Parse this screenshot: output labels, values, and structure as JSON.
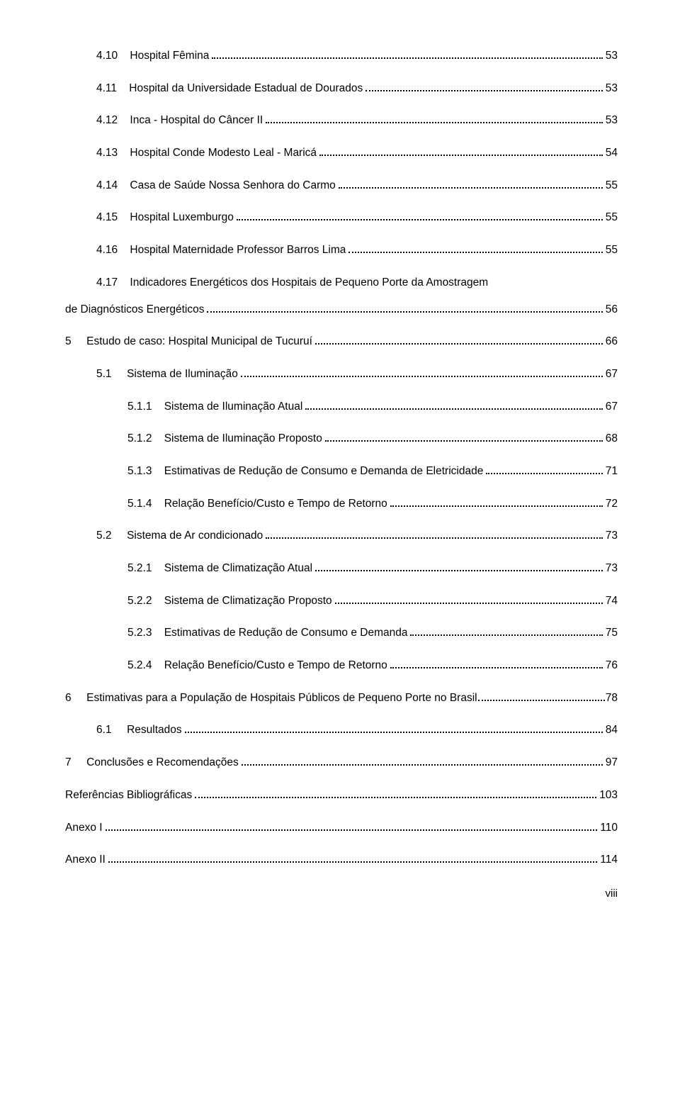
{
  "entries": [
    {
      "indent": 1,
      "num": "4.10",
      "gap": "    ",
      "text": "Hospital Fêmina",
      "page": "53"
    },
    {
      "indent": 1,
      "num": "4.11",
      "gap": "    ",
      "text": "Hospital da Universidade Estadual de Dourados",
      "page": "53"
    },
    {
      "indent": 1,
      "num": "4.12",
      "gap": "    ",
      "text": "Inca - Hospital do Câncer II",
      "page": "53"
    },
    {
      "indent": 1,
      "num": "4.13",
      "gap": "    ",
      "text": "Hospital Conde Modesto Leal - Maricá",
      "page": "54"
    },
    {
      "indent": 1,
      "num": "4.14",
      "gap": "    ",
      "text": "Casa de Saúde Nossa Senhora do Carmo",
      "page": "55"
    },
    {
      "indent": 1,
      "num": "4.15",
      "gap": "    ",
      "text": "Hospital Luxemburgo",
      "page": "55"
    },
    {
      "indent": 1,
      "num": "4.16",
      "gap": "    ",
      "text": "Hospital Maternidade Professor Barros Lima",
      "page": "55"
    },
    {
      "indent": 1,
      "num": "4.17",
      "gap": "    ",
      "text": "Indicadores Energéticos dos Hospitais de Pequeno Porte da Amostragem",
      "wrapBefore": "de Diagnósticos Energéticos",
      "page": "56"
    },
    {
      "indent": 0,
      "num": "5",
      "gap": "     ",
      "text": "Estudo de caso: Hospital Municipal de Tucuruí",
      "page": "66"
    },
    {
      "indent": 1,
      "num": "5.1",
      "gap": "     ",
      "text": "Sistema de Iluminação",
      "page": "67"
    },
    {
      "indent": 2,
      "num": "5.1.1",
      "gap": "    ",
      "text": "Sistema de Iluminação Atual",
      "page": "67"
    },
    {
      "indent": 2,
      "num": "5.1.2",
      "gap": "    ",
      "text": "Sistema de Iluminação Proposto",
      "page": "68"
    },
    {
      "indent": 2,
      "num": "5.1.3",
      "gap": "    ",
      "text": "Estimativas de Redução de Consumo e Demanda de Eletricidade",
      "page": "71"
    },
    {
      "indent": 2,
      "num": "5.1.4",
      "gap": "    ",
      "text": "Relação Benefício/Custo e Tempo de Retorno",
      "page": "72"
    },
    {
      "indent": 1,
      "num": "5.2",
      "gap": "     ",
      "text": "Sistema de Ar condicionado",
      "page": "73"
    },
    {
      "indent": 2,
      "num": "5.2.1",
      "gap": "    ",
      "text": "Sistema de Climatização Atual",
      "page": "73"
    },
    {
      "indent": 2,
      "num": "5.2.2",
      "gap": "    ",
      "text": "Sistema de Climatização Proposto",
      "page": "74"
    },
    {
      "indent": 2,
      "num": "5.2.3",
      "gap": "    ",
      "text": "Estimativas de Redução de Consumo e Demanda",
      "page": "75"
    },
    {
      "indent": 2,
      "num": "5.2.4",
      "gap": "    ",
      "text": "Relação Benefício/Custo  e Tempo de Retorno",
      "page": "76"
    },
    {
      "indent": 0,
      "num": "6",
      "gap": "     ",
      "text": "Estimativas para a População de Hospitais Públicos de Pequeno Porte no Brasil",
      "page": "78",
      "tightDots": true
    },
    {
      "indent": 1,
      "num": "6.1",
      "gap": "     ",
      "text": "Resultados",
      "page": "84"
    },
    {
      "indent": 0,
      "num": "7",
      "gap": "     ",
      "text": "Conclusões e Recomendações",
      "page": "97"
    },
    {
      "indent": 0,
      "num": "",
      "gap": "",
      "text": "Referências Bibliográficas",
      "page": "103"
    },
    {
      "indent": 0,
      "num": "",
      "gap": "",
      "text": "Anexo I",
      "page": "110"
    },
    {
      "indent": 0,
      "num": "",
      "gap": "",
      "text": "Anexo II",
      "page": "114"
    }
  ],
  "pageLabel": "viii"
}
